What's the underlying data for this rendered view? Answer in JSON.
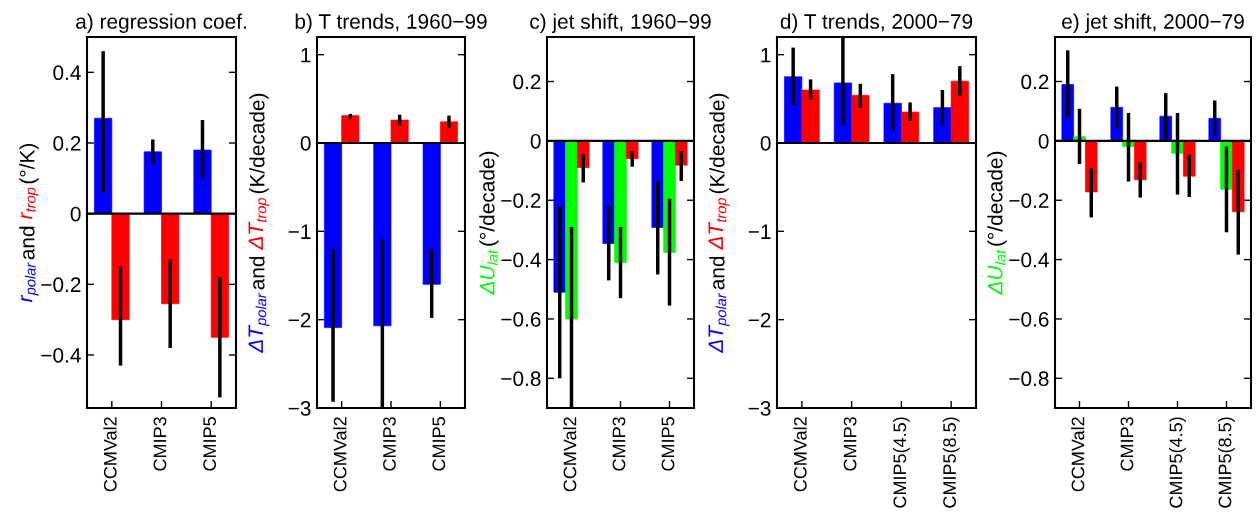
{
  "chart_data": [
    {
      "type": "bar",
      "title": "a) regression coef.",
      "ylabel": "r$_{polar}$ and r$_{trop}$ (°/K)",
      "categories": [
        "CCMVal2",
        "CMIP3",
        "CMIP5"
      ],
      "series": [
        {
          "color": "#0000ff",
          "values": [
            0.27,
            0.175,
            0.18
          ],
          "errors": [
            [
              0.06,
              0.46
            ],
            [
              0.14,
              0.21
            ],
            [
              0.1,
              0.265
            ]
          ]
        },
        {
          "color": "#ff0000",
          "values": [
            -0.3,
            -0.255,
            -0.35
          ],
          "errors": [
            [
              -0.43,
              -0.15
            ],
            [
              -0.38,
              -0.13
            ],
            [
              -0.52,
              -0.18
            ]
          ]
        }
      ],
      "ylim": [
        -0.55,
        0.5
      ],
      "yticks": [
        -0.4,
        -0.2,
        0,
        0.2,
        0.4
      ],
      "ref_lines": [
        {
          "axis": "y",
          "value": 0
        }
      ]
    },
    {
      "type": "bar",
      "title": "b) T trends, 1960−99",
      "ylabel": "ΔT$_{polar}$ and ΔT$_{trop}$ (K/decade)",
      "categories": [
        "CCMVal2",
        "CMIP3",
        "CMIP5"
      ],
      "series": [
        {
          "color": "#0000ff",
          "values": [
            -2.09,
            -2.07,
            -1.6
          ],
          "errors": [
            [
              -2.93,
              -1.2
            ],
            [
              -3.0,
              -1.09
            ],
            [
              -1.98,
              -1.2
            ]
          ]
        },
        {
          "color": "#ff0000",
          "values": [
            0.31,
            0.26,
            0.24
          ],
          "errors": [
            [
              0.27,
              0.33
            ],
            [
              0.2,
              0.32
            ],
            [
              0.17,
              0.31
            ]
          ]
        }
      ],
      "ylim": [
        -3,
        1.2
      ],
      "yticks": [
        -3,
        -2,
        -1,
        0,
        1
      ],
      "ref_lines": [
        {
          "axis": "y",
          "value": 0
        }
      ]
    },
    {
      "type": "bar",
      "title": "c) jet shift, 1960−99",
      "ylabel": "ΔU$_{lat}$ (°/decade)",
      "categories": [
        "CCMVal2",
        "CMIP3",
        "CMIP5"
      ],
      "series": [
        {
          "color": "#0000ff",
          "values": [
            -0.51,
            -0.346,
            -0.292
          ],
          "errors": [
            [
              -0.8,
              -0.22
            ],
            [
              -0.47,
              -0.22
            ],
            [
              -0.45,
              -0.135
            ]
          ]
        },
        {
          "color": "#00ff00",
          "values": [
            -0.6,
            -0.41,
            -0.376
          ],
          "errors": [
            [
              -0.9,
              -0.29
            ],
            [
              -0.53,
              -0.29
            ],
            [
              -0.555,
              -0.195
            ]
          ]
        },
        {
          "color": "#ff0000",
          "values": [
            -0.09,
            -0.06,
            -0.082
          ],
          "errors": [
            [
              -0.14,
              -0.045
            ],
            [
              -0.087,
              -0.035
            ],
            [
              -0.135,
              -0.034
            ]
          ]
        }
      ],
      "ylim": [
        -0.9,
        0.35
      ],
      "yticks": [
        -0.8,
        -0.6,
        -0.4,
        -0.2,
        0,
        0.2
      ],
      "ref_lines": [
        {
          "axis": "y",
          "value": 0
        }
      ]
    },
    {
      "type": "bar",
      "title": "d) T trends, 2000−79",
      "ylabel": "ΔT$_{polar}$ and ΔT$_{trop}$ (K/decade)",
      "categories": [
        "CCMVal2",
        "CMIP3",
        "CMIP5(4.5)",
        "CMIP5(8.5)"
      ],
      "series": [
        {
          "color": "#0000ff",
          "values": [
            0.75,
            0.68,
            0.45,
            0.4
          ],
          "errors": [
            [
              0.43,
              1.08
            ],
            [
              0.2,
              1.2
            ],
            [
              0.14,
              0.78
            ],
            [
              0.2,
              0.6
            ]
          ]
        },
        {
          "color": "#ff0000",
          "values": [
            0.6,
            0.54,
            0.35,
            0.7
          ],
          "errors": [
            [
              0.49,
              0.72
            ],
            [
              0.4,
              0.67
            ],
            [
              0.25,
              0.46
            ],
            [
              0.53,
              0.87
            ]
          ]
        }
      ],
      "ylim": [
        -3,
        1.2
      ],
      "yticks": [
        -3,
        -2,
        -1,
        0,
        1
      ],
      "ref_lines": [
        {
          "axis": "y",
          "value": 0
        }
      ]
    },
    {
      "type": "bar",
      "title": "e) jet shift, 2000−79",
      "ylabel": "ΔU$_{lat}$ (°/decade)",
      "categories": [
        "CCMVal2",
        "CMIP3",
        "CMIP5(4.5)",
        "CMIP5(8.5)"
      ],
      "series": [
        {
          "color": "#0000ff",
          "values": [
            0.19,
            0.113,
            0.083,
            0.076
          ],
          "errors": [
            [
              0.078,
              0.305
            ],
            [
              0.042,
              0.183
            ],
            [
              0.006,
              0.161
            ],
            [
              0.017,
              0.136
            ]
          ]
        },
        {
          "color": "#00ff00",
          "values": [
            0.014,
            -0.019,
            -0.042,
            -0.163
          ],
          "errors": [
            [
              -0.078,
              0.108
            ],
            [
              -0.137,
              0.094
            ],
            [
              -0.181,
              0.094
            ],
            [
              -0.308,
              -0.019
            ]
          ]
        },
        {
          "color": "#ff0000",
          "values": [
            -0.172,
            -0.131,
            -0.119,
            -0.239
          ],
          "errors": [
            [
              -0.258,
              -0.092
            ],
            [
              -0.191,
              -0.072
            ],
            [
              -0.189,
              -0.047
            ],
            [
              -0.383,
              -0.098
            ]
          ]
        }
      ],
      "ylim": [
        -0.9,
        0.35
      ],
      "yticks": [
        -0.8,
        -0.6,
        -0.4,
        -0.2,
        0,
        0.2
      ],
      "ref_lines": [
        {
          "axis": "y",
          "value": 0
        }
      ]
    }
  ]
}
